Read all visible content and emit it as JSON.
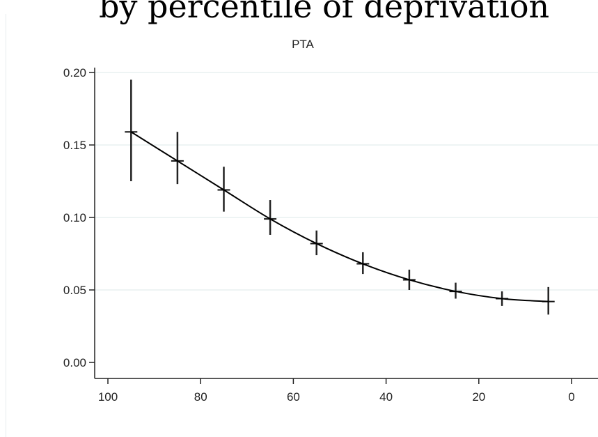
{
  "header": {
    "title": "by percentile of deprivation"
  },
  "chart_data": {
    "type": "line",
    "title": "PTA",
    "xlabel": "",
    "ylabel": "",
    "xlim": [
      100,
      0
    ],
    "ylim": [
      0,
      0.2
    ],
    "x_ticks": [
      "100",
      "80",
      "60",
      "40",
      "20",
      "0"
    ],
    "y_ticks": [
      "0.00",
      "0.05",
      "0.10",
      "0.15",
      "0.20"
    ],
    "grid": true,
    "x": [
      95,
      85,
      75,
      65,
      55,
      45,
      35,
      25,
      15,
      5
    ],
    "series": [
      {
        "values": [
          0.159,
          0.139,
          0.119,
          0.099,
          0.082,
          0.068,
          0.057,
          0.049,
          0.044,
          0.042
        ],
        "ci_low": [
          0.125,
          0.123,
          0.104,
          0.088,
          0.074,
          0.061,
          0.05,
          0.044,
          0.039,
          0.033
        ],
        "ci_high": [
          0.195,
          0.159,
          0.135,
          0.112,
          0.091,
          0.076,
          0.064,
          0.055,
          0.049,
          0.052
        ]
      }
    ],
    "colors": {
      "line": "#000000",
      "grid": "#e8f0f0",
      "axis": "#222222"
    }
  }
}
